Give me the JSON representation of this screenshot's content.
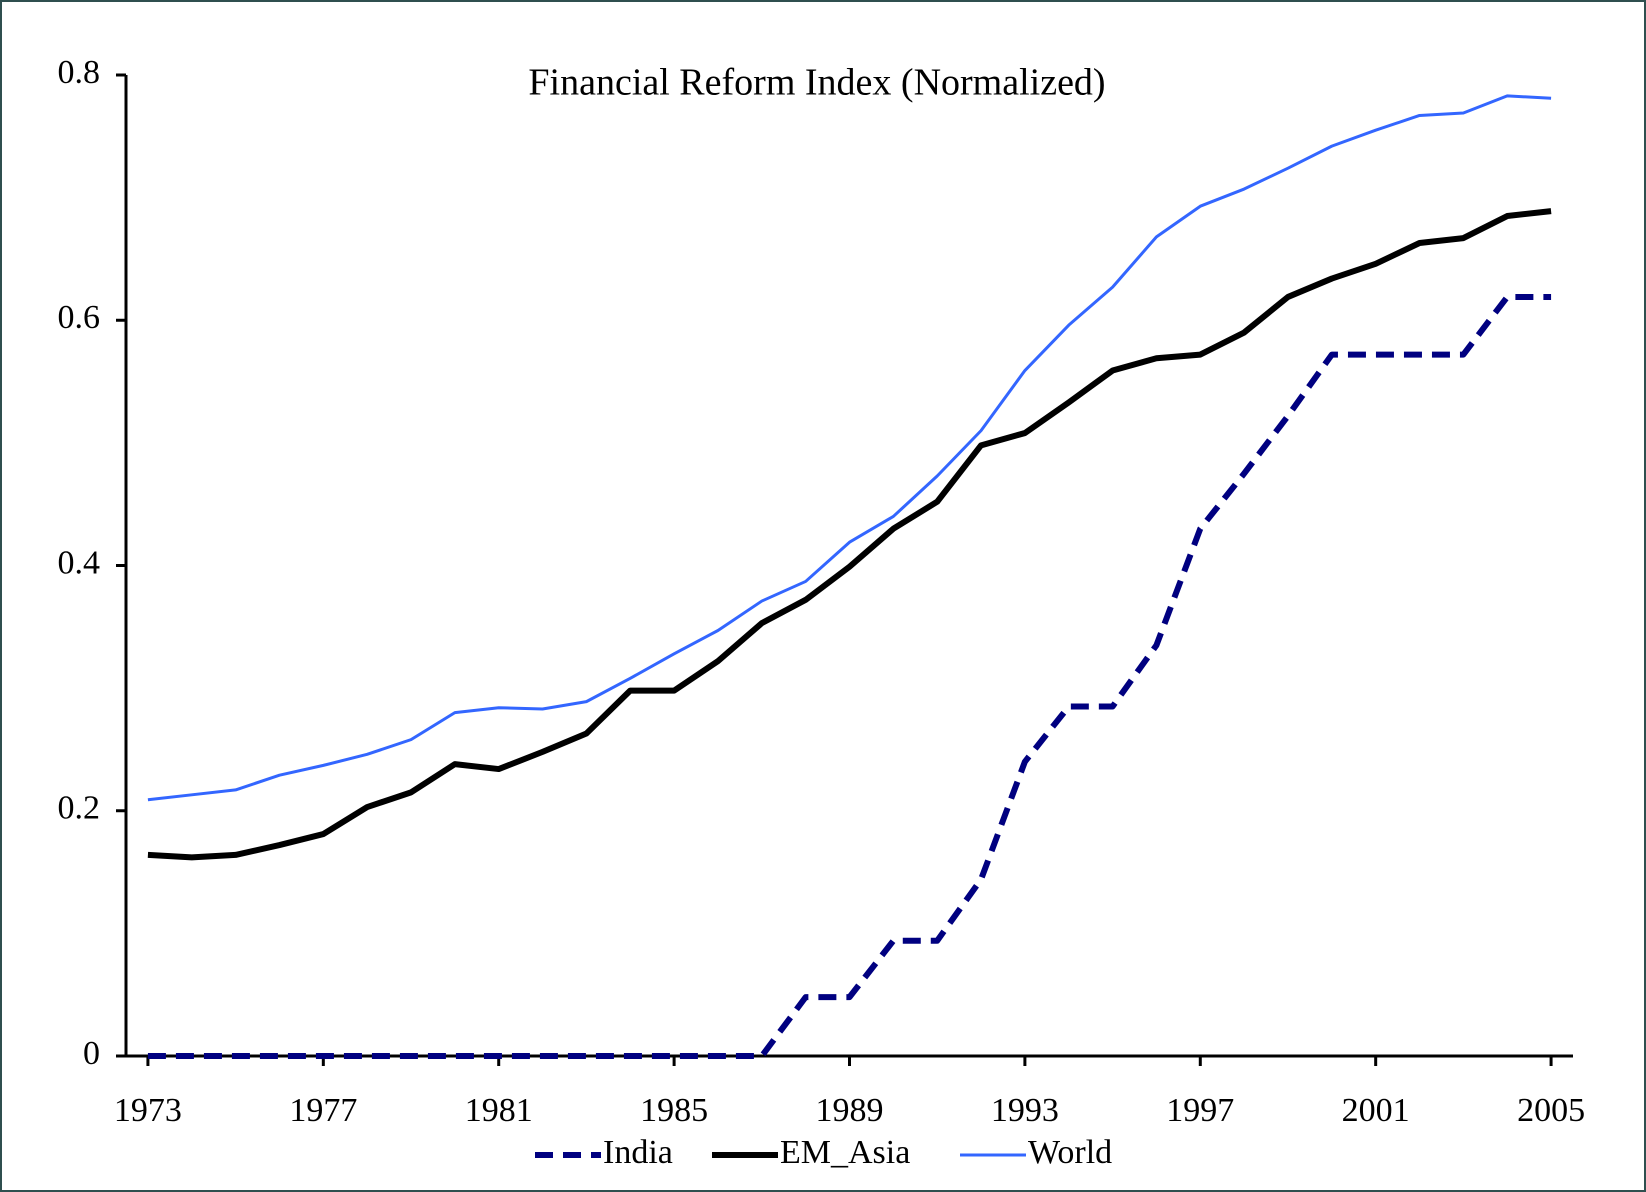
{
  "chart_data": {
    "type": "line",
    "title": "Financial Reform Index (Normalized)",
    "x": [
      1973,
      1974,
      1975,
      1976,
      1977,
      1978,
      1979,
      1980,
      1981,
      1982,
      1983,
      1984,
      1985,
      1986,
      1987,
      1988,
      1989,
      1990,
      1991,
      1992,
      1993,
      1994,
      1995,
      1996,
      1997,
      1998,
      1999,
      2000,
      2001,
      2002,
      2003,
      2004,
      2005
    ],
    "xlim": [
      1972.5,
      2005.5
    ],
    "xticks": [
      1973,
      1977,
      1981,
      1985,
      1989,
      1993,
      1997,
      2001,
      2005
    ],
    "ylim": [
      0,
      0.8
    ],
    "yticks": [
      0,
      0.2,
      0.4,
      0.6,
      0.8
    ],
    "legend": "bottom",
    "series": [
      {
        "name": "India",
        "color": "#000080",
        "dash": true,
        "width": 6,
        "values": [
          0,
          0,
          0,
          0,
          0,
          0,
          0,
          0,
          0,
          0,
          0,
          0,
          0,
          0,
          0,
          0.048,
          0.048,
          0.094,
          0.094,
          0.144,
          0.24,
          0.285,
          0.285,
          0.335,
          0.43,
          0.475,
          0.522,
          0.572,
          0.572,
          0.572,
          0.572,
          0.619,
          0.619
        ]
      },
      {
        "name": "EM_Asia",
        "color": "#000000",
        "dash": false,
        "width": 6,
        "values": [
          0.164,
          0.162,
          0.164,
          0.172,
          0.181,
          0.203,
          0.215,
          0.238,
          0.234,
          0.248,
          0.263,
          0.298,
          0.298,
          0.322,
          0.353,
          0.372,
          0.399,
          0.43,
          0.452,
          0.498,
          0.508,
          0.533,
          0.559,
          0.569,
          0.572,
          0.59,
          0.619,
          0.634,
          0.646,
          0.663,
          0.667,
          0.685,
          0.689
        ]
      },
      {
        "name": "World",
        "color": "#3366ff",
        "dash": false,
        "width": 3,
        "values": [
          0.209,
          0.213,
          0.217,
          0.229,
          0.237,
          0.246,
          0.258,
          0.28,
          0.284,
          0.283,
          0.289,
          0.308,
          0.328,
          0.347,
          0.371,
          0.387,
          0.419,
          0.44,
          0.473,
          0.51,
          0.559,
          0.596,
          0.627,
          0.668,
          0.693,
          0.707,
          0.724,
          0.742,
          0.755,
          0.767,
          0.769,
          0.783,
          0.781
        ]
      }
    ]
  }
}
